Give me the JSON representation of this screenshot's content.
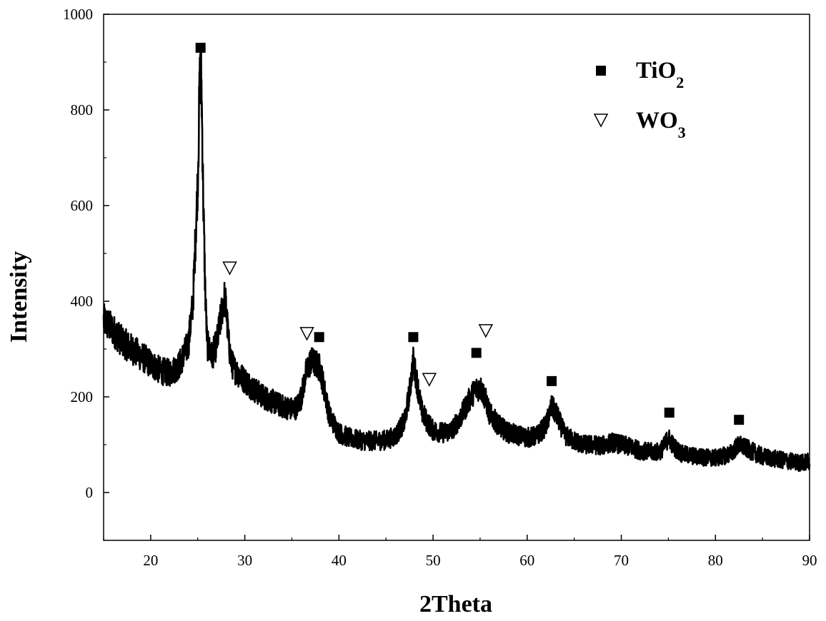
{
  "chart_data": {
    "type": "line",
    "xlabel": "2Theta",
    "ylabel": "Intensity",
    "xlim": [
      15,
      90
    ],
    "ylim": [
      -100,
      1000
    ],
    "x_ticks": [
      20,
      30,
      40,
      50,
      60,
      70,
      80,
      90
    ],
    "y_ticks": [
      0,
      200,
      400,
      600,
      800,
      1000
    ],
    "grid": false,
    "legend_position": "top-right",
    "legend": [
      {
        "label": "TiO",
        "subscript": "2",
        "marker": "filled-square"
      },
      {
        "label": "WO",
        "subscript": "3",
        "marker": "open-down-triangle"
      }
    ],
    "series": [
      {
        "color": "#000000",
        "x": [
          15,
          16,
          17,
          18,
          19,
          20,
          21,
          22,
          23,
          24,
          24.5,
          25,
          25.2,
          25.3,
          25.4,
          25.6,
          25.8,
          26,
          26.5,
          27,
          27.5,
          27.8,
          28,
          28.3,
          28.6,
          29,
          30,
          31,
          32,
          33,
          34,
          35,
          35.5,
          36,
          36.5,
          37,
          37.5,
          38,
          38.5,
          39,
          40,
          41,
          42,
          43,
          44,
          45,
          46,
          47,
          47.5,
          47.9,
          48.3,
          48.8,
          49.3,
          50,
          51,
          52,
          53,
          54,
          54.5,
          55,
          55.5,
          56,
          57,
          58,
          59,
          60,
          61,
          62,
          62.6,
          63.2,
          64,
          65,
          66,
          67,
          68,
          69,
          70,
          71,
          72,
          73,
          74,
          74.5,
          75,
          75.6,
          76.5,
          78,
          80,
          81.5,
          82.5,
          83.5,
          85,
          87,
          89,
          90
        ],
        "y": [
          360,
          340,
          315,
          300,
          285,
          270,
          255,
          250,
          265,
          310,
          400,
          650,
          850,
          900,
          850,
          600,
          420,
          310,
          285,
          310,
          370,
          410,
          390,
          310,
          270,
          255,
          235,
          215,
          200,
          190,
          180,
          175,
          178,
          200,
          250,
          275,
          270,
          260,
          210,
          160,
          125,
          115,
          110,
          108,
          108,
          110,
          118,
          150,
          210,
          275,
          230,
          170,
          150,
          130,
          125,
          130,
          160,
          200,
          215,
          220,
          200,
          165,
          140,
          125,
          120,
          115,
          118,
          140,
          180,
          160,
          120,
          108,
          100,
          100,
          98,
          105,
          100,
          95,
          88,
          85,
          85,
          95,
          115,
          95,
          80,
          75,
          72,
          80,
          100,
          90,
          75,
          68,
          62,
          65
        ]
      }
    ],
    "annotations": [
      {
        "phase": "TiO2",
        "marker": "filled-square",
        "x": 25.3,
        "y": 930
      },
      {
        "phase": "TiO2",
        "marker": "filled-square",
        "x": 37.9,
        "y": 325
      },
      {
        "phase": "TiO2",
        "marker": "filled-square",
        "x": 47.9,
        "y": 325
      },
      {
        "phase": "TiO2",
        "marker": "filled-square",
        "x": 54.6,
        "y": 292
      },
      {
        "phase": "TiO2",
        "marker": "filled-square",
        "x": 62.6,
        "y": 233
      },
      {
        "phase": "TiO2",
        "marker": "filled-square",
        "x": 75.1,
        "y": 167
      },
      {
        "phase": "TiO2",
        "marker": "filled-square",
        "x": 82.5,
        "y": 152
      },
      {
        "phase": "WO3",
        "marker": "open-down-triangle",
        "x": 28.4,
        "y": 470
      },
      {
        "phase": "WO3",
        "marker": "open-down-triangle",
        "x": 36.6,
        "y": 333
      },
      {
        "phase": "WO3",
        "marker": "open-down-triangle",
        "x": 49.6,
        "y": 237
      },
      {
        "phase": "WO3",
        "marker": "open-down-triangle",
        "x": 55.6,
        "y": 339
      }
    ]
  }
}
